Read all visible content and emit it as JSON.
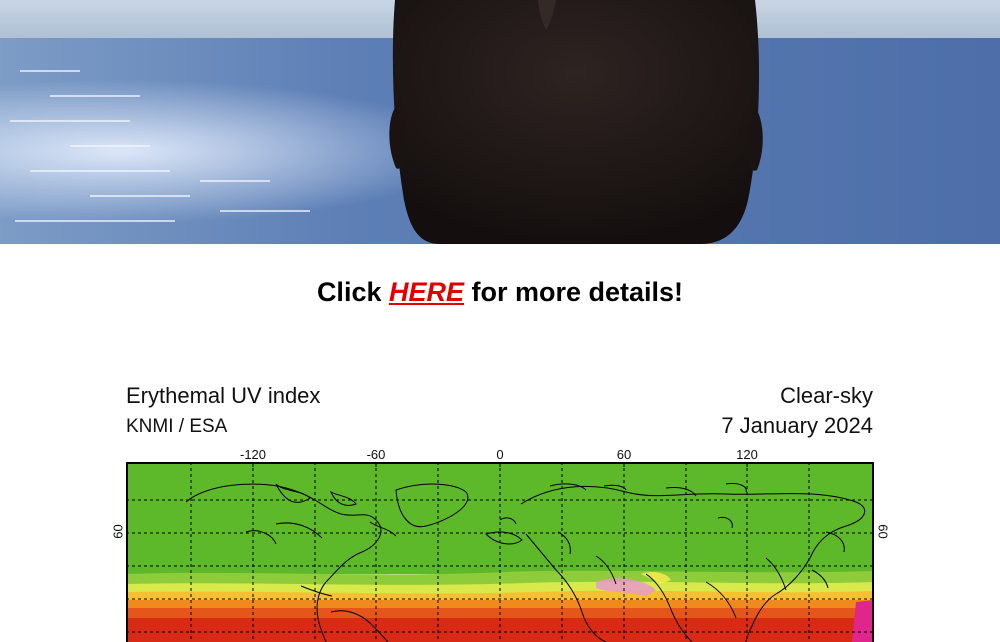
{
  "cta": {
    "prefix": "Click ",
    "link_label": "HERE",
    "suffix": " for more details!",
    "link_color": "#e00000"
  },
  "uv_map": {
    "title": "Erythemal UV index",
    "source": "KNMI / ESA",
    "mode": "Clear-sky",
    "date": "7 January 2024",
    "lon_ticks": [
      "-120",
      "-60",
      "0",
      "60",
      "120"
    ],
    "lat_tick_left": "60",
    "lat_tick_right": "60",
    "colors": {
      "low": "#5db82a",
      "band1": "#8fcc3a",
      "band2": "#d9e84a",
      "band3": "#f6c033",
      "band4": "#f08a1d",
      "band5": "#e5561a",
      "high": "#d82a14",
      "extreme": "#e0268a"
    }
  }
}
